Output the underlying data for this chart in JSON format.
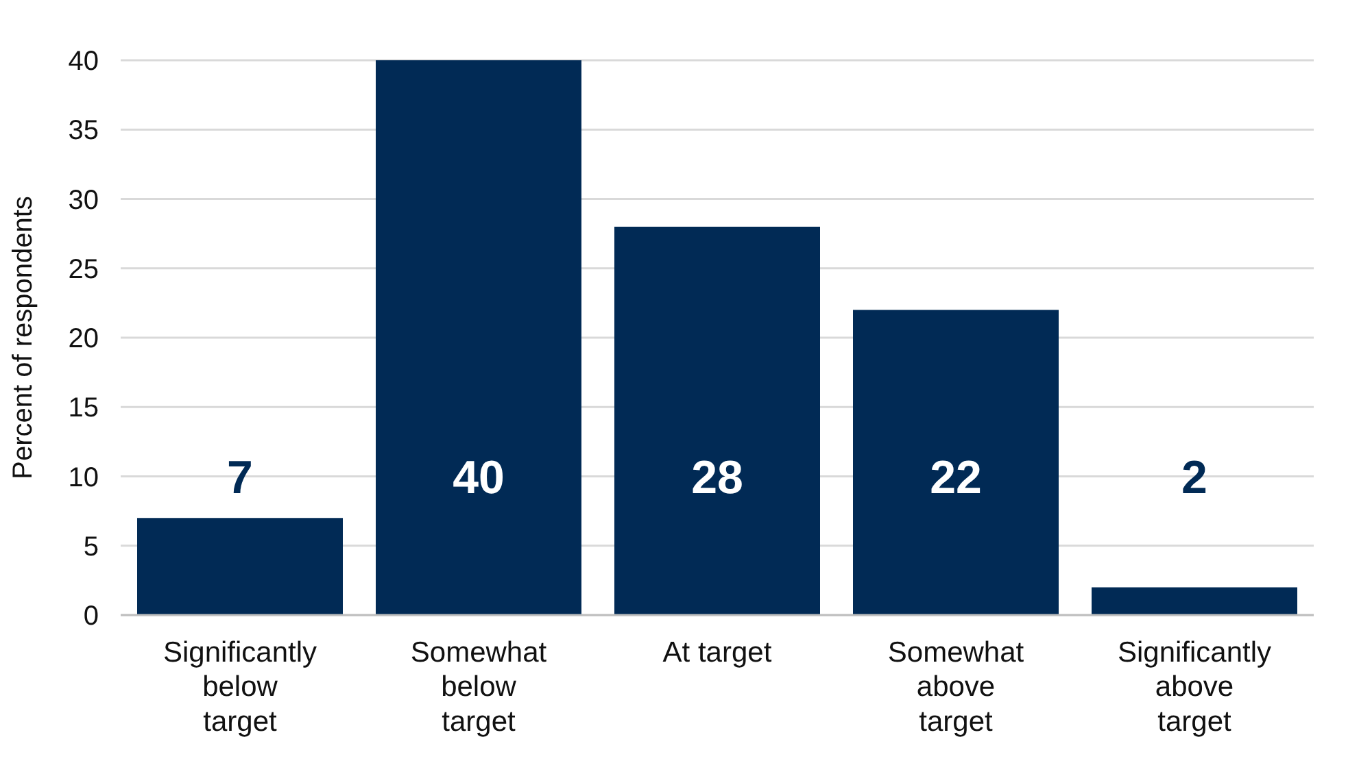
{
  "chart_data": {
    "type": "bar",
    "ylabel": "Percent of respondents",
    "categories": [
      "Significantly below target",
      "Somewhat below target",
      "At target",
      "Somewhat above target",
      "Significantly above target"
    ],
    "values": [
      7,
      40,
      28,
      22,
      2
    ],
    "color": "#012a55",
    "ylim": [
      0,
      40
    ],
    "yticks": [
      0,
      5,
      10,
      15,
      20,
      25,
      30,
      35,
      40
    ],
    "grid": "y",
    "data_labels": true
  }
}
